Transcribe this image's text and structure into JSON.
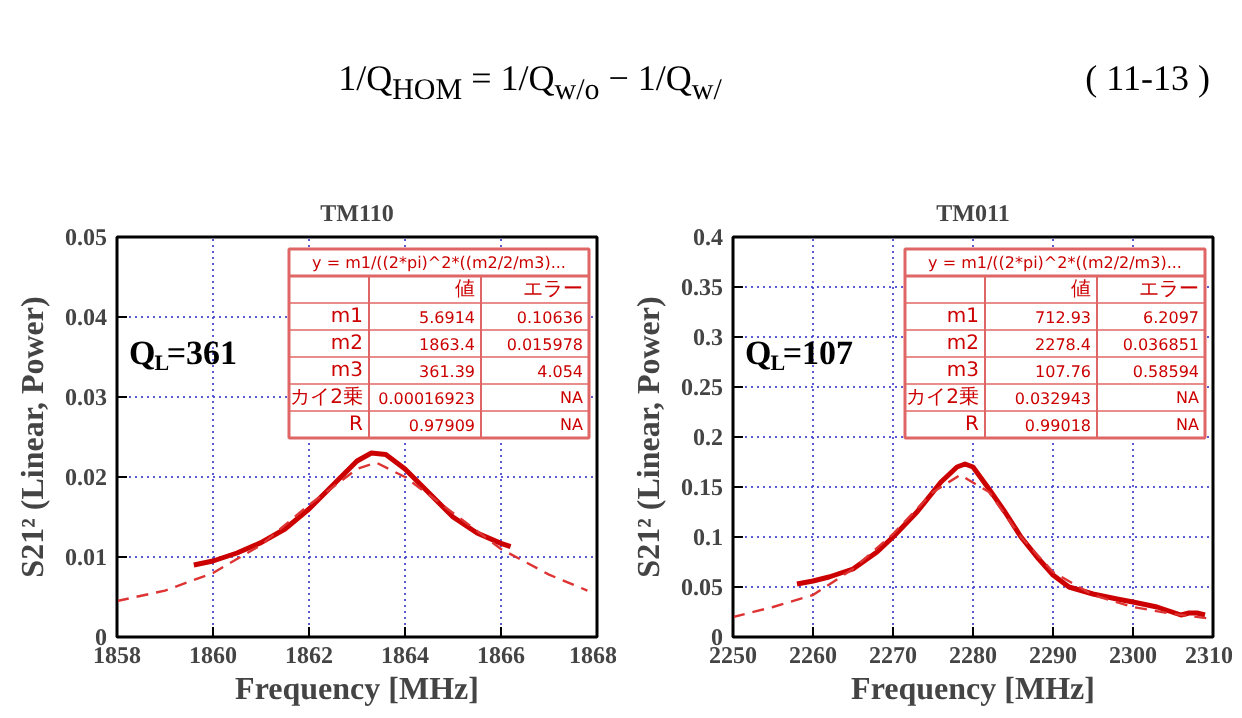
{
  "chart_data": [
    {
      "type": "other",
      "annotations": [
        "1/Q$_{HOM}$ = 1/Q$_{w/o}$ − 1/Q$_{w/}$",
        "( 11-13 )"
      ]
    },
    {
      "type": "line",
      "title": "TM110",
      "xlabel": "Frequency [MHz]",
      "ylabel": "S21² (Linear, Power)",
      "xlim": [
        1858,
        1868
      ],
      "xticks": [
        1858,
        1860,
        1862,
        1864,
        1866,
        1868
      ],
      "ylim": [
        0,
        0.05
      ],
      "yticks": [
        0,
        0.01,
        0.02,
        0.03,
        0.04,
        0.05
      ],
      "grid": true,
      "series": [
        {
          "color": "#cc0000",
          "line_style": "solid",
          "x": [
            1859.6,
            1860,
            1860.5,
            1861,
            1861.5,
            1862,
            1862.5,
            1863,
            1863.3,
            1863.6,
            1864,
            1864.5,
            1865,
            1865.5,
            1866,
            1866.2
          ],
          "values": [
            0.009,
            0.0095,
            0.0105,
            0.0118,
            0.0135,
            0.016,
            0.019,
            0.022,
            0.023,
            0.0228,
            0.021,
            0.018,
            0.015,
            0.013,
            0.0117,
            0.0113
          ]
        },
        {
          "color": "#dd3333",
          "line_style": "dashed",
          "x": [
            1858,
            1859,
            1860,
            1861,
            1862,
            1863,
            1863.4,
            1864,
            1865,
            1866,
            1867,
            1867.8
          ],
          "values": [
            0.0045,
            0.0058,
            0.008,
            0.0115,
            0.0165,
            0.021,
            0.0218,
            0.02,
            0.0155,
            0.011,
            0.0078,
            0.0058
          ]
        }
      ],
      "annotations": [
        "Q$_{L}$=361",
        "y = m1/((2*pi)^2*((m2/2/m3)...",
        "値",
        "エラー",
        "m1",
        "5.6914",
        "0.10636",
        "m2",
        "1863.4",
        "0.015978",
        "m3",
        "361.39",
        "4.054",
        "カイ2乗",
        "0.00016923",
        "NA",
        "R",
        "0.97909",
        "NA"
      ]
    },
    {
      "type": "line",
      "title": "TM011",
      "xlabel": "Frequency [MHz]",
      "ylabel": "S21² (Linear, Power)",
      "xlim": [
        2250,
        2310
      ],
      "xticks": [
        2250,
        2260,
        2270,
        2280,
        2290,
        2300,
        2310
      ],
      "ylim": [
        0,
        0.4
      ],
      "yticks": [
        0,
        0.05,
        0.1,
        0.15,
        0.2,
        0.25,
        0.3,
        0.35,
        0.4
      ],
      "grid": true,
      "series": [
        {
          "color": "#cc0000",
          "line_style": "solid",
          "x": [
            2258,
            2260,
            2262,
            2265,
            2268,
            2270,
            2273,
            2276,
            2278,
            2279,
            2280,
            2282,
            2284,
            2286,
            2288,
            2290,
            2292,
            2295,
            2298,
            2300,
            2303,
            2306,
            2307,
            2308,
            2309
          ],
          "values": [
            0.053,
            0.056,
            0.06,
            0.068,
            0.085,
            0.1,
            0.125,
            0.155,
            0.17,
            0.173,
            0.17,
            0.148,
            0.125,
            0.1,
            0.08,
            0.062,
            0.05,
            0.043,
            0.038,
            0.035,
            0.03,
            0.022,
            0.024,
            0.024,
            0.022
          ]
        },
        {
          "color": "#dd3333",
          "line_style": "dashed",
          "x": [
            2250,
            2255,
            2260,
            2265,
            2270,
            2275,
            2278.4,
            2282,
            2286,
            2290,
            2295,
            2300,
            2305,
            2310
          ],
          "values": [
            0.02,
            0.03,
            0.042,
            0.068,
            0.103,
            0.145,
            0.162,
            0.145,
            0.1,
            0.065,
            0.042,
            0.03,
            0.023,
            0.018
          ]
        }
      ],
      "annotations": [
        "Q$_{L}$=107",
        "y = m1/((2*pi)^2*((m2/2/m3)...",
        "値",
        "エラー",
        "m1",
        "712.93",
        "6.2097",
        "m2",
        "2278.4",
        "0.036851",
        "m3",
        "107.76",
        "0.58594",
        "カイ2乗",
        "0.032943",
        "NA",
        "R",
        "0.99018",
        "NA"
      ]
    }
  ]
}
